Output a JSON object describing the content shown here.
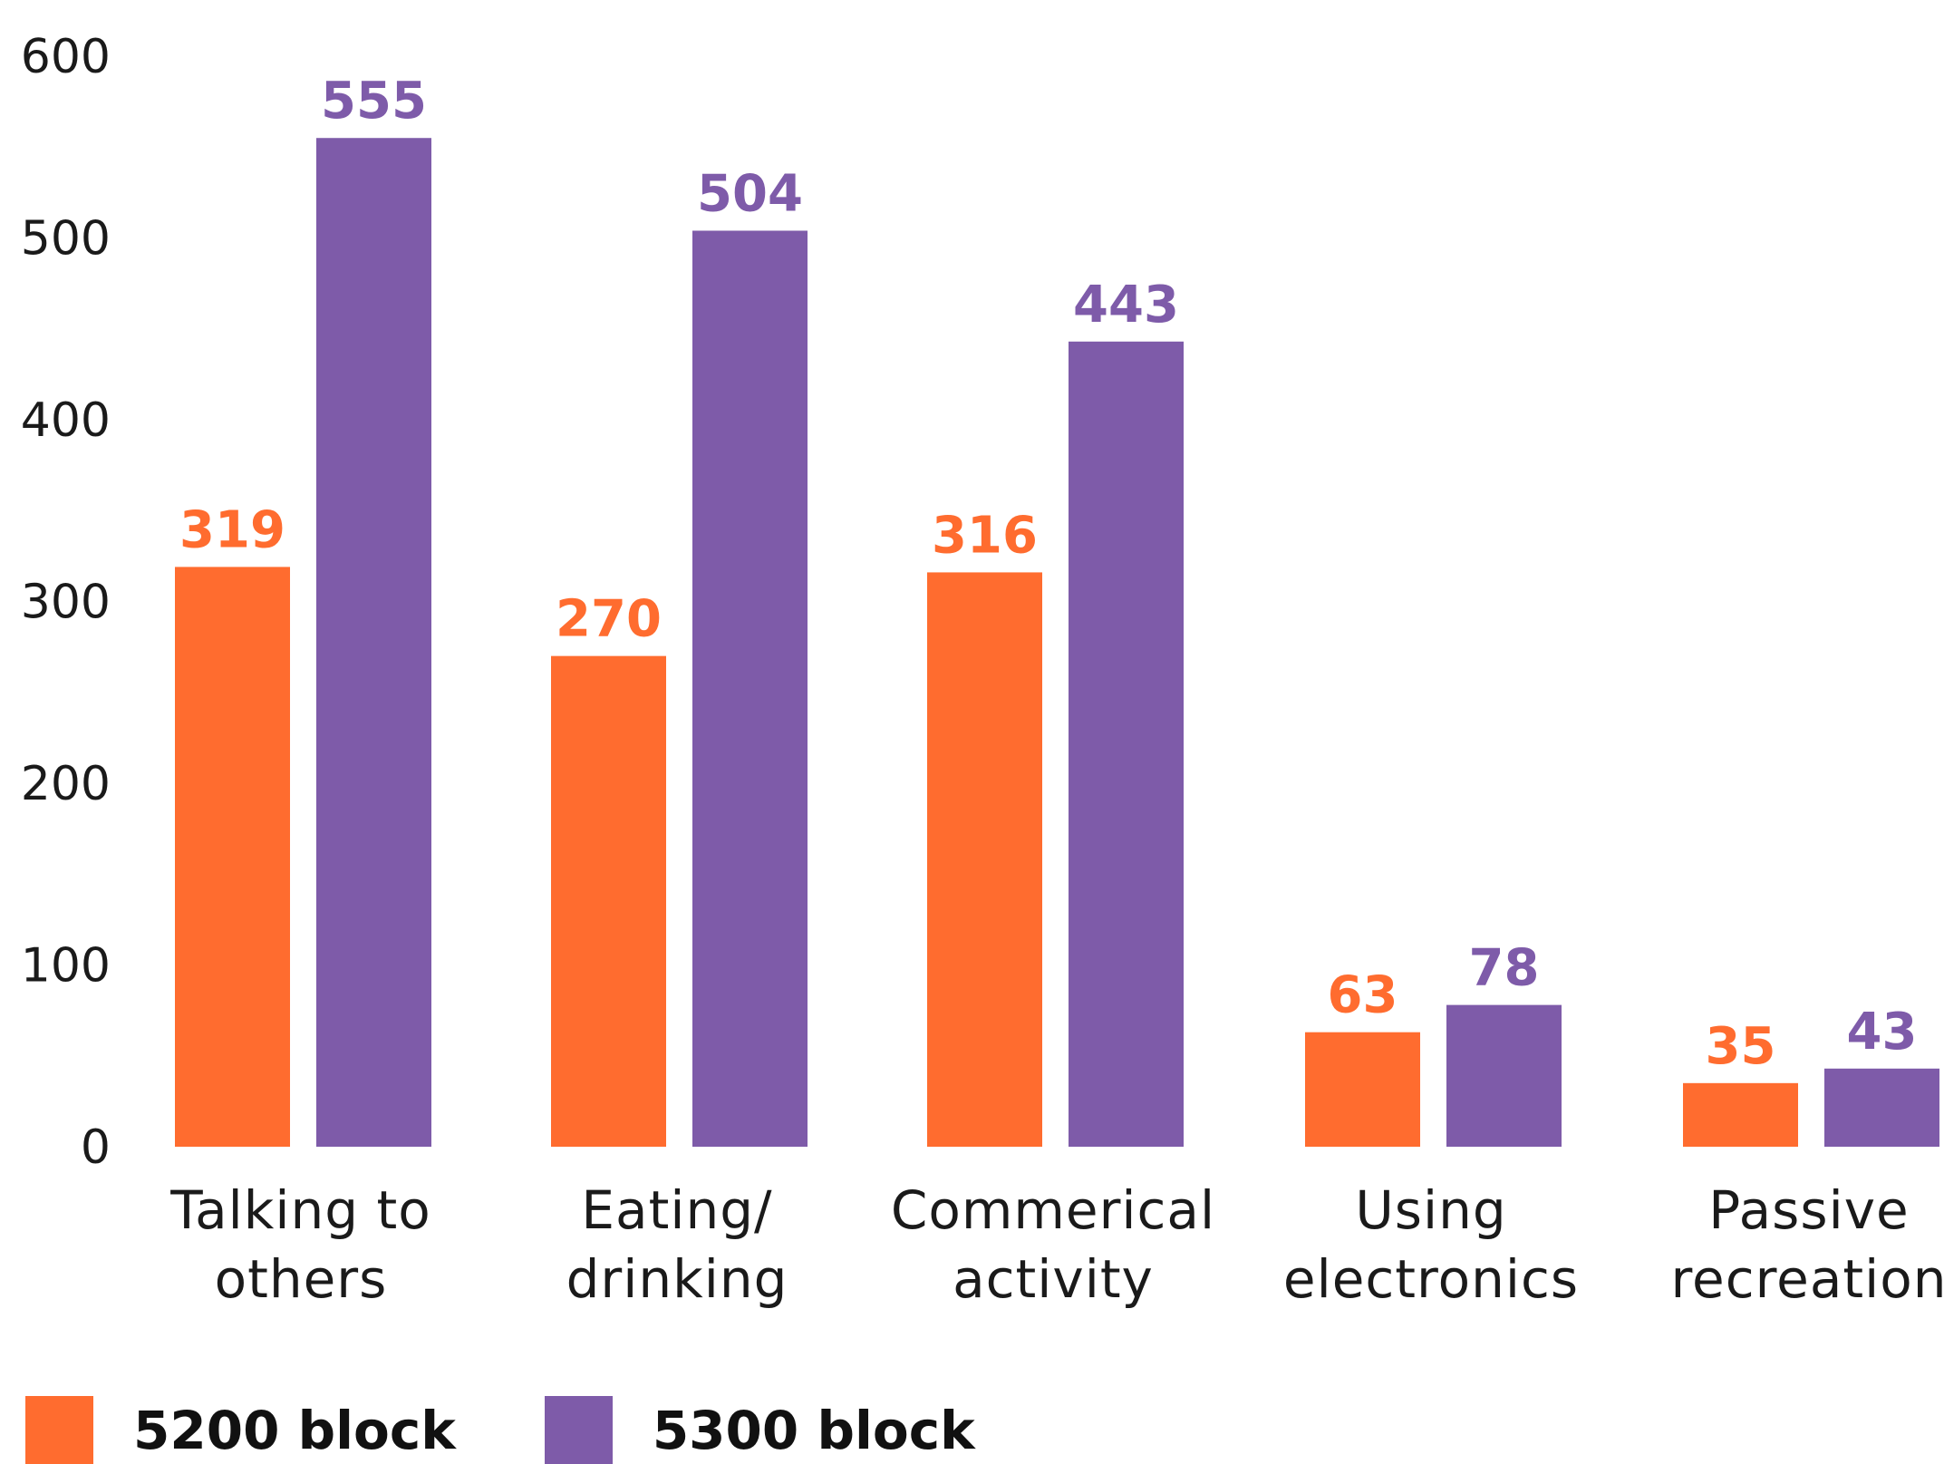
{
  "chart_data": {
    "type": "bar",
    "categories": [
      [
        "Talking to",
        "others"
      ],
      [
        "Eating/",
        "drinking"
      ],
      [
        "Commerical",
        "activity"
      ],
      [
        "Using",
        "electronics"
      ],
      [
        "Passive",
        "recreation"
      ]
    ],
    "series": [
      {
        "name": "5200 block",
        "color": "#FF6C2F",
        "values": [
          319,
          270,
          316,
          63,
          35
        ]
      },
      {
        "name": "5300 block",
        "color": "#7E5BA9",
        "values": [
          555,
          504,
          443,
          78,
          43
        ]
      }
    ],
    "yticks": [
      0,
      100,
      200,
      300,
      400,
      500,
      600
    ],
    "ylim": [
      0,
      600
    ],
    "grid": false,
    "legend_position": "bottom-left"
  }
}
